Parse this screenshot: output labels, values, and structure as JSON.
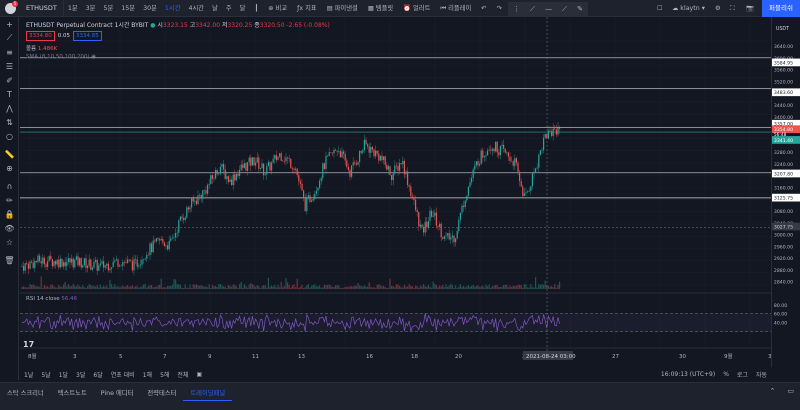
{
  "topbar": {
    "notification_count": "5",
    "symbol": "ETHUSDT",
    "timeframes": [
      "1분",
      "3분",
      "5분",
      "15분",
      "30분",
      "1시간",
      "4시간",
      "날",
      "주",
      "달"
    ],
    "active_timeframe": "1시간",
    "compare_label": "비교",
    "indicators_label": "지표",
    "financials_label": "파이낸셜",
    "templates_label": "템플릿",
    "alert_label": "얼러트",
    "replay_label": "리플레이",
    "layout_name": "klaytn",
    "publish_label": "퍼블리쉬"
  },
  "legend": {
    "title": "ETHUSDT Perpetual Contract  1시간  BYBIT",
    "o_label": "시",
    "o": "3323.15",
    "h_label": "고",
    "h": "3342.00",
    "l_label": "저",
    "l": "3320.25",
    "c_label": "종",
    "c": "3320.50",
    "change": "-2.65 (-0.08%)",
    "bid": "3334.80",
    "spread": "0.05",
    "ask": "3334.85",
    "volume_label": "볼륨",
    "volume_value": "1.486K",
    "sma_label": "SMA (8,10,50,100,200)",
    "rsi_label": "RSI 14 close",
    "rsi_value": "56.46"
  },
  "price_axis": {
    "currency": "USDT",
    "ticks": [
      "3640.00",
      "3600.00",
      "3560.00",
      "3520.00",
      "3480.00",
      "3440.00",
      "3400.00",
      "3360.00",
      "3320.00",
      "3280.00",
      "3240.00",
      "3200.00",
      "3160.00",
      "3120.00",
      "3080.00",
      "3040.00",
      "3000.00",
      "2960.00",
      "2920.00",
      "2880.00",
      "2840.00"
    ],
    "labels": [
      "3584.95",
      "3483.60",
      "3357.00",
      "3354.80",
      "3341.40",
      "3207.80",
      "3125.75",
      "3027.75"
    ],
    "countdown": "56:48",
    "rsi_ticks": [
      "80.00",
      "60.00",
      "40.00"
    ]
  },
  "time_axis": {
    "ticks": [
      "8월",
      "3",
      "5",
      "7",
      "9",
      "11",
      "13",
      "16",
      "18",
      "20",
      "2",
      "27",
      "30",
      "9월",
      "3"
    ],
    "crosshair_label": "2021-08-24  03:00"
  },
  "bottombar": {
    "ranges": [
      "1날",
      "5날",
      "1달",
      "3달",
      "6달",
      "연초 대비",
      "1해",
      "5해",
      "전체"
    ],
    "time": "16:09:13 (UTC+9)",
    "percent": "%",
    "log": "로그",
    "auto": "자동"
  },
  "tabs": [
    "스탁 스크리너",
    "텍스트노트",
    "Pine 에디터",
    "전략테스터",
    "트레이딩패널"
  ],
  "active_tab": "트레이딩패널",
  "colors": {
    "up": "#26a69a",
    "down": "#ef5350",
    "accent": "#2962ff",
    "rsi": "#7e57c2"
  }
}
